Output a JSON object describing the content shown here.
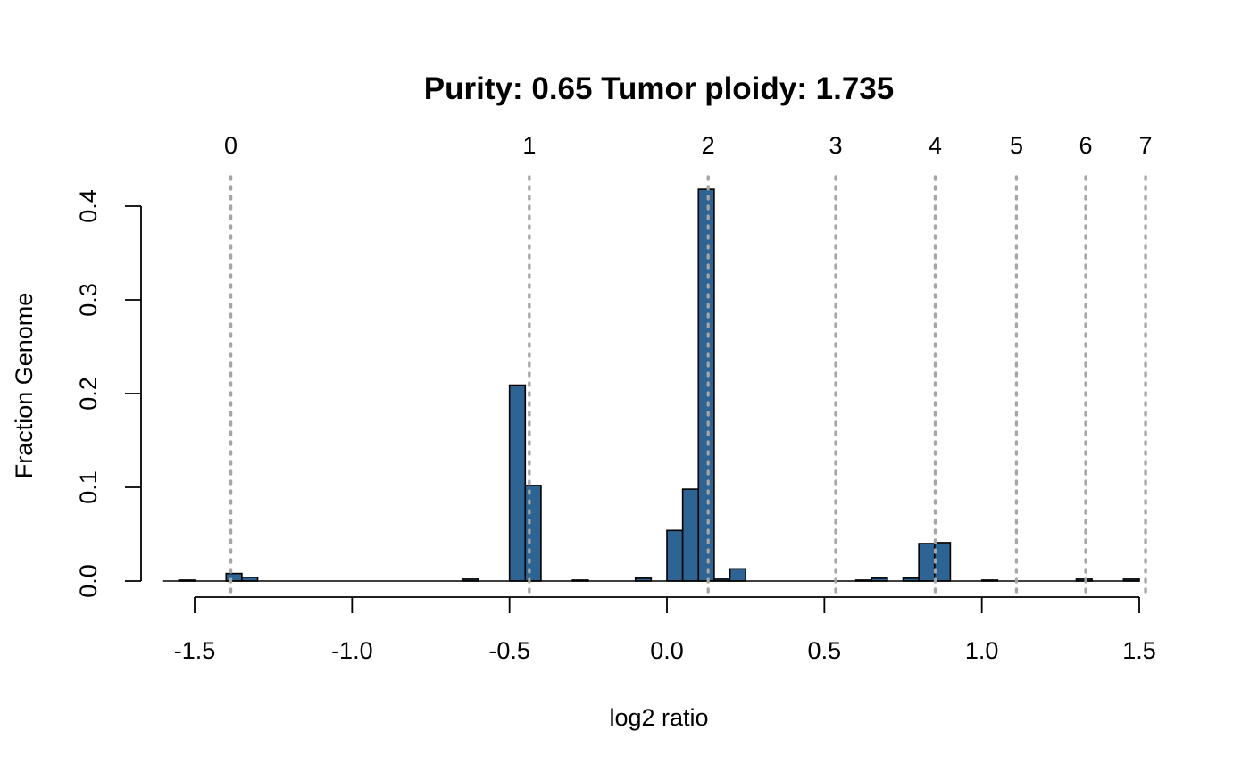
{
  "chart_data": {
    "type": "bar",
    "title": "Purity: 0.65  Tumor ploidy: 1.735",
    "xlabel": "log2 ratio",
    "ylabel": "Fraction Genome",
    "xlim": [
      -1.5,
      1.5
    ],
    "ylim": [
      0,
      0.4
    ],
    "x_ticks": [
      -1.5,
      -1.0,
      -0.5,
      0.0,
      0.5,
      1.0,
      1.5
    ],
    "x_tick_labels": [
      "-1.5",
      "-1.0",
      "-0.5",
      "0.0",
      "0.5",
      "1.0",
      "1.5"
    ],
    "y_ticks": [
      0.0,
      0.1,
      0.2,
      0.3,
      0.4
    ],
    "y_tick_labels": [
      "0.0",
      "0.1",
      "0.2",
      "0.3",
      "0.4"
    ],
    "bin_width": 0.05,
    "bins": [
      {
        "start": -1.6,
        "value": 0.0
      },
      {
        "start": -1.55,
        "value": 0.001
      },
      {
        "start": -1.5,
        "value": 0.0
      },
      {
        "start": -1.45,
        "value": 0.0
      },
      {
        "start": -1.4,
        "value": 0.008
      },
      {
        "start": -1.35,
        "value": 0.004
      },
      {
        "start": -1.3,
        "value": 0.0
      },
      {
        "start": -1.25,
        "value": 0.0
      },
      {
        "start": -1.2,
        "value": 0.0
      },
      {
        "start": -1.15,
        "value": 0.0
      },
      {
        "start": -1.1,
        "value": 0.0
      },
      {
        "start": -1.05,
        "value": 0.0
      },
      {
        "start": -1.0,
        "value": 0.0
      },
      {
        "start": -0.95,
        "value": 0.0
      },
      {
        "start": -0.9,
        "value": 0.0
      },
      {
        "start": -0.85,
        "value": 0.0
      },
      {
        "start": -0.8,
        "value": 0.0
      },
      {
        "start": -0.75,
        "value": 0.0
      },
      {
        "start": -0.7,
        "value": 0.0
      },
      {
        "start": -0.65,
        "value": 0.002
      },
      {
        "start": -0.6,
        "value": 0.0
      },
      {
        "start": -0.55,
        "value": 0.0
      },
      {
        "start": -0.5,
        "value": 0.209
      },
      {
        "start": -0.45,
        "value": 0.102
      },
      {
        "start": -0.4,
        "value": 0.0
      },
      {
        "start": -0.35,
        "value": 0.0
      },
      {
        "start": -0.3,
        "value": 0.001
      },
      {
        "start": -0.25,
        "value": 0.0
      },
      {
        "start": -0.2,
        "value": 0.0
      },
      {
        "start": -0.15,
        "value": 0.0
      },
      {
        "start": -0.1,
        "value": 0.003
      },
      {
        "start": -0.05,
        "value": 0.0
      },
      {
        "start": 0.0,
        "value": 0.054
      },
      {
        "start": 0.05,
        "value": 0.098
      },
      {
        "start": 0.1,
        "value": 0.418
      },
      {
        "start": 0.15,
        "value": 0.002
      },
      {
        "start": 0.2,
        "value": 0.013
      },
      {
        "start": 0.25,
        "value": 0.0
      },
      {
        "start": 0.3,
        "value": 0.0
      },
      {
        "start": 0.35,
        "value": 0.0
      },
      {
        "start": 0.4,
        "value": 0.0
      },
      {
        "start": 0.45,
        "value": 0.0
      },
      {
        "start": 0.5,
        "value": 0.0
      },
      {
        "start": 0.55,
        "value": 0.0
      },
      {
        "start": 0.6,
        "value": 0.001
      },
      {
        "start": 0.65,
        "value": 0.003
      },
      {
        "start": 0.7,
        "value": 0.0
      },
      {
        "start": 0.75,
        "value": 0.003
      },
      {
        "start": 0.8,
        "value": 0.04
      },
      {
        "start": 0.85,
        "value": 0.041
      },
      {
        "start": 0.9,
        "value": 0.0
      },
      {
        "start": 0.95,
        "value": 0.0
      },
      {
        "start": 1.0,
        "value": 0.001
      },
      {
        "start": 1.05,
        "value": 0.0
      },
      {
        "start": 1.1,
        "value": 0.0
      },
      {
        "start": 1.15,
        "value": 0.0
      },
      {
        "start": 1.2,
        "value": 0.0
      },
      {
        "start": 1.25,
        "value": 0.0
      },
      {
        "start": 1.3,
        "value": 0.002
      },
      {
        "start": 1.35,
        "value": 0.0
      },
      {
        "start": 1.4,
        "value": 0.0
      },
      {
        "start": 1.45,
        "value": 0.002
      }
    ],
    "copy_number_lines": [
      {
        "label": "0",
        "x": -1.385
      },
      {
        "label": "1",
        "x": -0.437
      },
      {
        "label": "2",
        "x": 0.131
      },
      {
        "label": "3",
        "x": 0.536
      },
      {
        "label": "4",
        "x": 0.852
      },
      {
        "label": "5",
        "x": 1.11
      },
      {
        "label": "6",
        "x": 1.33
      },
      {
        "label": "7",
        "x": 1.52
      }
    ],
    "bar_color": "#2E6494",
    "bar_border_color": "#000000",
    "line_color": "#A6A6A6",
    "grid": false,
    "legend": "none"
  }
}
